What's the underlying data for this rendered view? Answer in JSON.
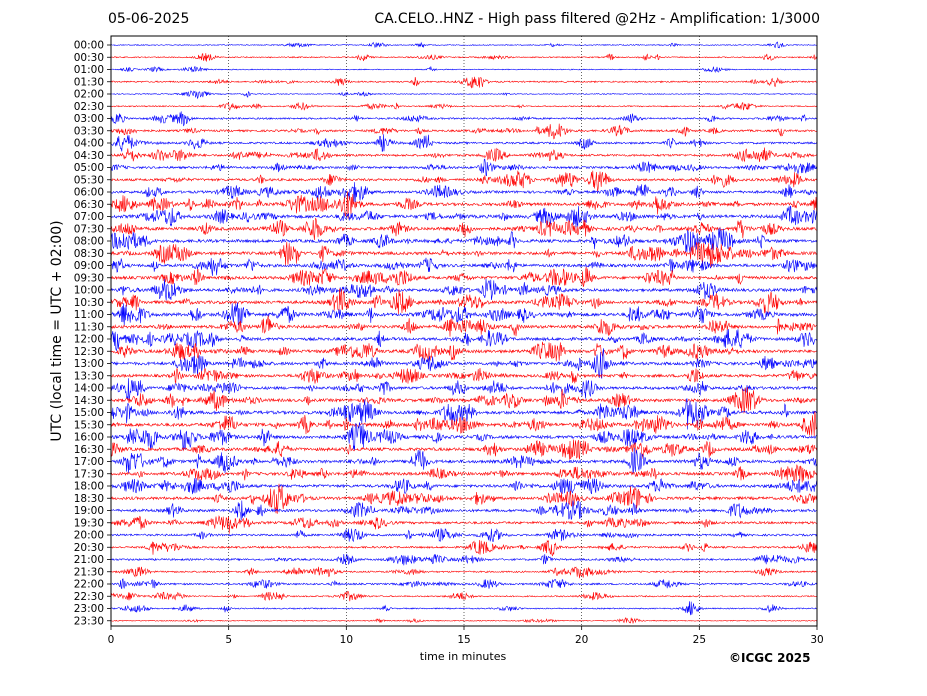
{
  "header": {
    "date": "05-06-2025",
    "title": "CA.CELO..HNZ - High pass filtered @2Hz - Amplification: 1/3000"
  },
  "footer": {
    "copyright": "©ICGC 2025"
  },
  "chart_data": {
    "type": "line",
    "title": "CA.CELO..HNZ - High pass filtered @2Hz - Amplification: 1/3000",
    "xlabel": "time in minutes",
    "ylabel": "UTC (local time = UTC + 02:00)",
    "xlim": [
      0,
      30
    ],
    "x_ticks": [
      0,
      5,
      10,
      15,
      20,
      25,
      30
    ],
    "grid": "vertical dotted at 5-minute intervals",
    "y_tick_labels": [
      "00:00",
      "00:30",
      "01:00",
      "01:30",
      "02:00",
      "02:30",
      "03:00",
      "03:30",
      "04:00",
      "04:30",
      "05:00",
      "05:30",
      "06:00",
      "06:30",
      "07:00",
      "07:30",
      "08:00",
      "08:30",
      "09:00",
      "09:30",
      "10:00",
      "10:30",
      "11:00",
      "11:30",
      "12:00",
      "12:30",
      "13:00",
      "13:30",
      "14:00",
      "14:30",
      "15:00",
      "15:30",
      "16:00",
      "16:30",
      "17:00",
      "17:30",
      "18:00",
      "18:30",
      "19:00",
      "19:30",
      "20:00",
      "20:30",
      "21:00",
      "21:30",
      "22:00",
      "22:30",
      "23:00",
      "23:30"
    ],
    "trace_colors": [
      "#0000ff",
      "#ff0000"
    ],
    "trace_activity": [
      0.15,
      0.25,
      0.15,
      0.35,
      0.15,
      0.25,
      0.45,
      0.55,
      0.55,
      0.6,
      0.6,
      0.7,
      0.75,
      0.9,
      1.0,
      1.0,
      0.95,
      0.95,
      0.9,
      0.9,
      0.9,
      0.95,
      1.0,
      0.95,
      0.9,
      0.95,
      0.9,
      0.85,
      0.85,
      0.9,
      1.0,
      1.0,
      1.0,
      0.95,
      0.95,
      0.9,
      0.85,
      0.85,
      0.8,
      0.7,
      0.55,
      0.5,
      0.5,
      0.4,
      0.45,
      0.3,
      0.25,
      0.15
    ]
  }
}
